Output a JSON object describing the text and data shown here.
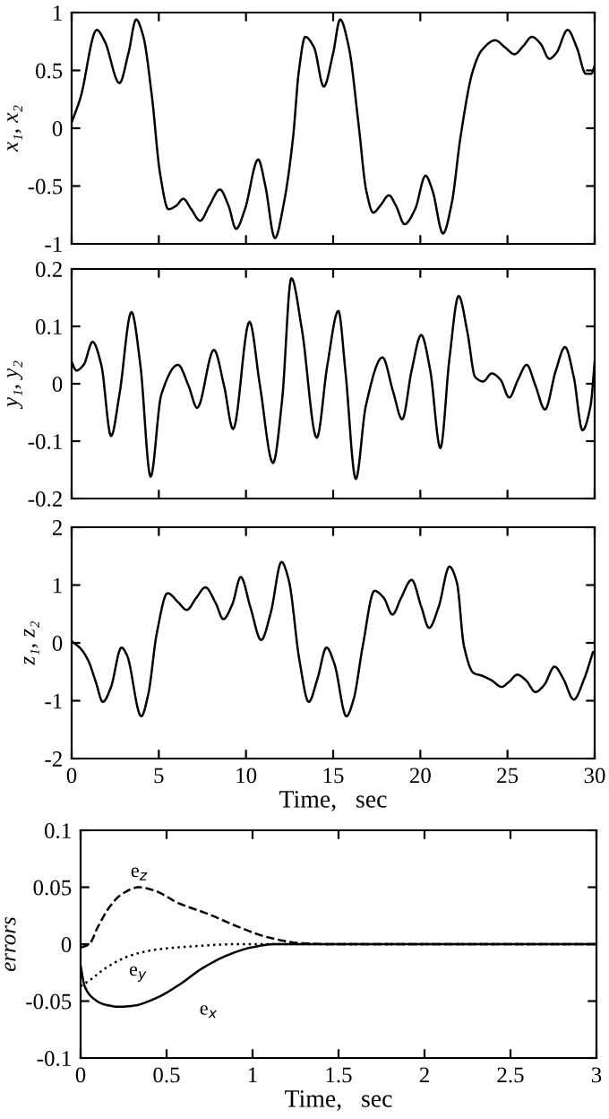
{
  "chart_data": [
    {
      "type": "line",
      "ylabel": "x₁, x₂",
      "xlim": [
        0,
        30
      ],
      "ylim": [
        -1,
        1
      ],
      "xticks": [
        0,
        5,
        10,
        15,
        20,
        25,
        30
      ],
      "yticks": [
        -1,
        -0.5,
        0,
        0.5,
        1
      ],
      "tick_labels": "y",
      "series": [
        {
          "color": "#000000",
          "x": [
            0,
            0.5,
            1.44,
            1.9,
            2.74,
            3.26,
            3.7,
            4.1,
            4.6,
            5.07,
            5.55,
            6.0,
            6.4,
            6.86,
            7.37,
            7.9,
            8.5,
            9.0,
            9.43,
            9.94,
            10.7,
            11.1,
            11.66,
            12.17,
            12.7,
            13.03,
            13.4,
            13.9,
            14.46,
            15.0,
            15.4,
            15.9,
            16.46,
            16.9,
            17.3,
            17.7,
            18.2,
            18.6,
            19.1,
            19.7,
            20.3,
            20.7,
            21.3,
            21.8,
            22.3,
            23.0,
            23.5,
            24.3,
            24.85,
            25.4,
            25.9,
            26.4,
            26.9,
            27.4,
            27.8,
            28.45,
            28.97,
            29.5,
            29.8,
            30
          ],
          "values": [
            0.05,
            0.26,
            0.85,
            0.75,
            0.39,
            0.65,
            0.94,
            0.8,
            0.28,
            -0.39,
            -0.7,
            -0.67,
            -0.61,
            -0.7,
            -0.8,
            -0.67,
            -0.53,
            -0.67,
            -0.87,
            -0.7,
            -0.27,
            -0.49,
            -0.95,
            -0.65,
            -0.08,
            0.49,
            0.79,
            0.7,
            0.36,
            0.65,
            0.94,
            0.7,
            0.03,
            -0.54,
            -0.73,
            -0.67,
            -0.58,
            -0.67,
            -0.83,
            -0.7,
            -0.41,
            -0.54,
            -0.91,
            -0.65,
            -0.08,
            0.49,
            0.67,
            0.76,
            0.7,
            0.64,
            0.71,
            0.79,
            0.73,
            0.6,
            0.65,
            0.85,
            0.7,
            0.47,
            0.47,
            0.54
          ]
        }
      ]
    },
    {
      "type": "line",
      "ylabel": "y₁, y₂",
      "xlim": [
        0,
        30
      ],
      "ylim": [
        -0.2,
        0.2
      ],
      "xticks": [
        0,
        5,
        10,
        15,
        20,
        25,
        30
      ],
      "yticks": [
        -0.2,
        -0.1,
        0,
        0.1,
        0.2
      ],
      "tick_labels": "y",
      "series": [
        {
          "color": "#000000",
          "x": [
            0,
            0.27,
            0.69,
            1.2,
            1.7,
            2.26,
            2.74,
            3.43,
            3.94,
            4.53,
            5.14,
            6.1,
            6.7,
            7.2,
            8.16,
            8.74,
            9.26,
            10.2,
            10.8,
            11.55,
            12.07,
            12.6,
            13.2,
            14.06,
            14.67,
            15.3,
            15.7,
            16.3,
            16.87,
            17.83,
            18.44,
            18.96,
            19.5,
            20.05,
            20.57,
            21.15,
            21.67,
            22.2,
            22.7,
            23.14,
            23.6,
            24.1,
            24.6,
            25.1,
            25.6,
            26.1,
            26.6,
            27.15,
            27.77,
            28.3,
            28.8,
            29.3,
            29.76,
            30
          ],
          "values": [
            0.038,
            0.023,
            0.033,
            0.073,
            0.033,
            -0.091,
            -0.019,
            0.125,
            0.033,
            -0.162,
            -0.019,
            0.033,
            -0.003,
            -0.042,
            0.059,
            -0.003,
            -0.079,
            0.108,
            -0.003,
            -0.138,
            -0.029,
            0.184,
            0.096,
            -0.094,
            0.033,
            0.127,
            0.023,
            -0.166,
            -0.039,
            0.046,
            -0.014,
            -0.062,
            0.023,
            0.085,
            0.023,
            -0.112,
            0.044,
            0.153,
            0.09,
            0.012,
            0.004,
            0.018,
            0.007,
            -0.024,
            0.007,
            0.033,
            -0.003,
            -0.045,
            0.023,
            0.064,
            0.012,
            -0.081,
            -0.039,
            0.038
          ]
        }
      ]
    },
    {
      "type": "line",
      "ylabel": "z₁, z₂",
      "xlabel": "Time,   sec",
      "xlim": [
        0,
        30
      ],
      "ylim": [
        -2,
        2
      ],
      "xticks": [
        0,
        5,
        10,
        15,
        20,
        25,
        30
      ],
      "yticks": [
        -2,
        -1,
        0,
        1,
        2
      ],
      "series": [
        {
          "color": "#000000",
          "x": [
            0,
            0.52,
            0.96,
            1.38,
            1.79,
            2.24,
            2.86,
            3.17,
            3.99,
            4.4,
            4.88,
            5.5,
            6.12,
            6.6,
            7.15,
            7.67,
            8.26,
            8.7,
            9.22,
            9.7,
            10.25,
            10.87,
            11.42,
            12.04,
            12.45,
            13.07,
            13.6,
            14.1,
            14.62,
            15.07,
            15.76,
            16.17,
            16.7,
            17.37,
            17.9,
            18.4,
            18.9,
            19.5,
            20.06,
            20.5,
            21.05,
            21.67,
            22.1,
            22.5,
            23.05,
            23.56,
            24.1,
            24.66,
            25.1,
            25.56,
            26.07,
            26.6,
            27.1,
            27.7,
            28.2,
            28.8,
            29.4,
            29.9
          ],
          "values": [
            0.03,
            -0.1,
            -0.31,
            -0.67,
            -1.02,
            -0.78,
            -0.08,
            -0.21,
            -1.27,
            -0.88,
            0.16,
            0.86,
            0.7,
            0.57,
            0.78,
            0.96,
            0.69,
            0.41,
            0.67,
            1.14,
            0.62,
            0.05,
            0.52,
            1.4,
            1.09,
            -0.31,
            -1.02,
            -0.62,
            -0.08,
            -0.36,
            -1.27,
            -0.98,
            -0.05,
            0.9,
            0.78,
            0.49,
            0.78,
            1.09,
            0.62,
            0.26,
            0.62,
            1.32,
            1.04,
            -0.05,
            -0.52,
            -0.57,
            -0.65,
            -0.76,
            -0.67,
            -0.55,
            -0.65,
            -0.85,
            -0.73,
            -0.41,
            -0.62,
            -0.98,
            -0.62,
            -0.16
          ]
        }
      ]
    },
    {
      "type": "line",
      "ylabel": "errors",
      "xlabel": "Time,   sec",
      "xlim": [
        0,
        3
      ],
      "ylim": [
        -0.1,
        0.1
      ],
      "xticks": [
        0,
        0.5,
        1,
        1.5,
        2,
        2.5,
        3
      ],
      "yticks": [
        -0.1,
        -0.05,
        0,
        0.05,
        0.1
      ],
      "series": [
        {
          "name": "e$_{x}$",
          "color": "#000000",
          "line_style": "solid",
          "x": [
            0,
            0.024,
            0.069,
            0.139,
            0.225,
            0.31,
            0.43,
            0.57,
            0.71,
            0.85,
            0.99,
            1.13,
            1.34,
            3
          ],
          "values": [
            -0.019,
            -0.037,
            -0.047,
            -0.053,
            -0.055,
            -0.054,
            -0.048,
            -0.036,
            -0.021,
            -0.01,
            -0.003,
            0,
            0,
            0
          ]
        },
        {
          "name": "e$_{y}$",
          "color": "#000000",
          "line_style": "dotted",
          "x": [
            0,
            0.05,
            0.156,
            0.29,
            0.43,
            0.64,
            0.92,
            1.27,
            3
          ],
          "values": [
            -0.037,
            -0.032,
            -0.02,
            -0.01,
            -0.005,
            -0.002,
            0,
            0,
            0
          ]
        },
        {
          "name": "e$_{z}$",
          "color": "#000000",
          "line_style": "dashed",
          "x": [
            0,
            0.05,
            0.1,
            0.17,
            0.24,
            0.34,
            0.43,
            0.57,
            0.75,
            0.92,
            1.09,
            1.27,
            1.44,
            3
          ],
          "values": [
            -0.003,
            0,
            0.015,
            0.033,
            0.044,
            0.05,
            0.047,
            0.036,
            0.026,
            0.015,
            0.006,
            0.001,
            0,
            0
          ]
        }
      ]
    }
  ]
}
